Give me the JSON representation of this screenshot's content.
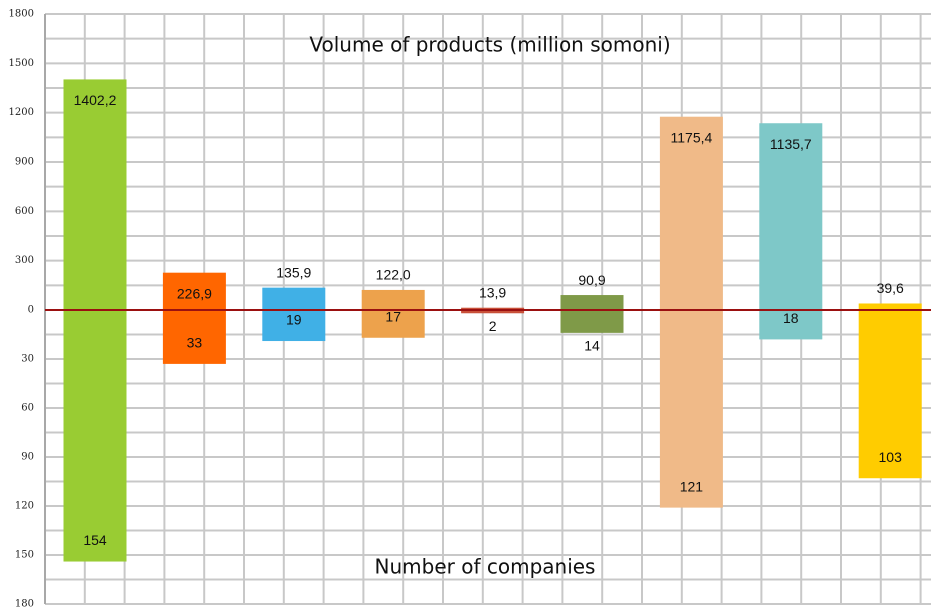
{
  "chart_data": {
    "type": "diverging_bar",
    "categories": [
      null,
      null,
      null,
      null,
      null,
      null,
      null,
      null,
      null
    ],
    "colors": [
      "#99cc33",
      "#ff6600",
      "#40b0e6",
      "#eda24c",
      "#c9513a",
      "#7f9a48",
      "#f0ba88",
      "#7ec8c8",
      "#ffcc00"
    ],
    "series": [
      {
        "name": "Volume of products (million somoni)",
        "values": [
          1402.2,
          226.9,
          135.9,
          122.0,
          13.9,
          90.9,
          1175.4,
          1135.7,
          39.6
        ],
        "value_labels": [
          "1402,2",
          "226,9",
          "135,9",
          "122,0",
          "13,9",
          "90,9",
          "1175,4",
          "1135,7",
          "39,6"
        ]
      },
      {
        "name": "Number of companies",
        "axis": "y2",
        "values": [
          154,
          33,
          19,
          17,
          2,
          14,
          121,
          18,
          103
        ]
      }
    ],
    "ylim": [
      0,
      1800
    ],
    "yticks": [
      0,
      300,
      600,
      900,
      1200,
      1500,
      1800
    ],
    "y2lim": [
      0,
      180
    ],
    "y2ticks": [
      30,
      60,
      90,
      120,
      150,
      180
    ],
    "grid": true,
    "zero_line_color": "#9b1010"
  }
}
